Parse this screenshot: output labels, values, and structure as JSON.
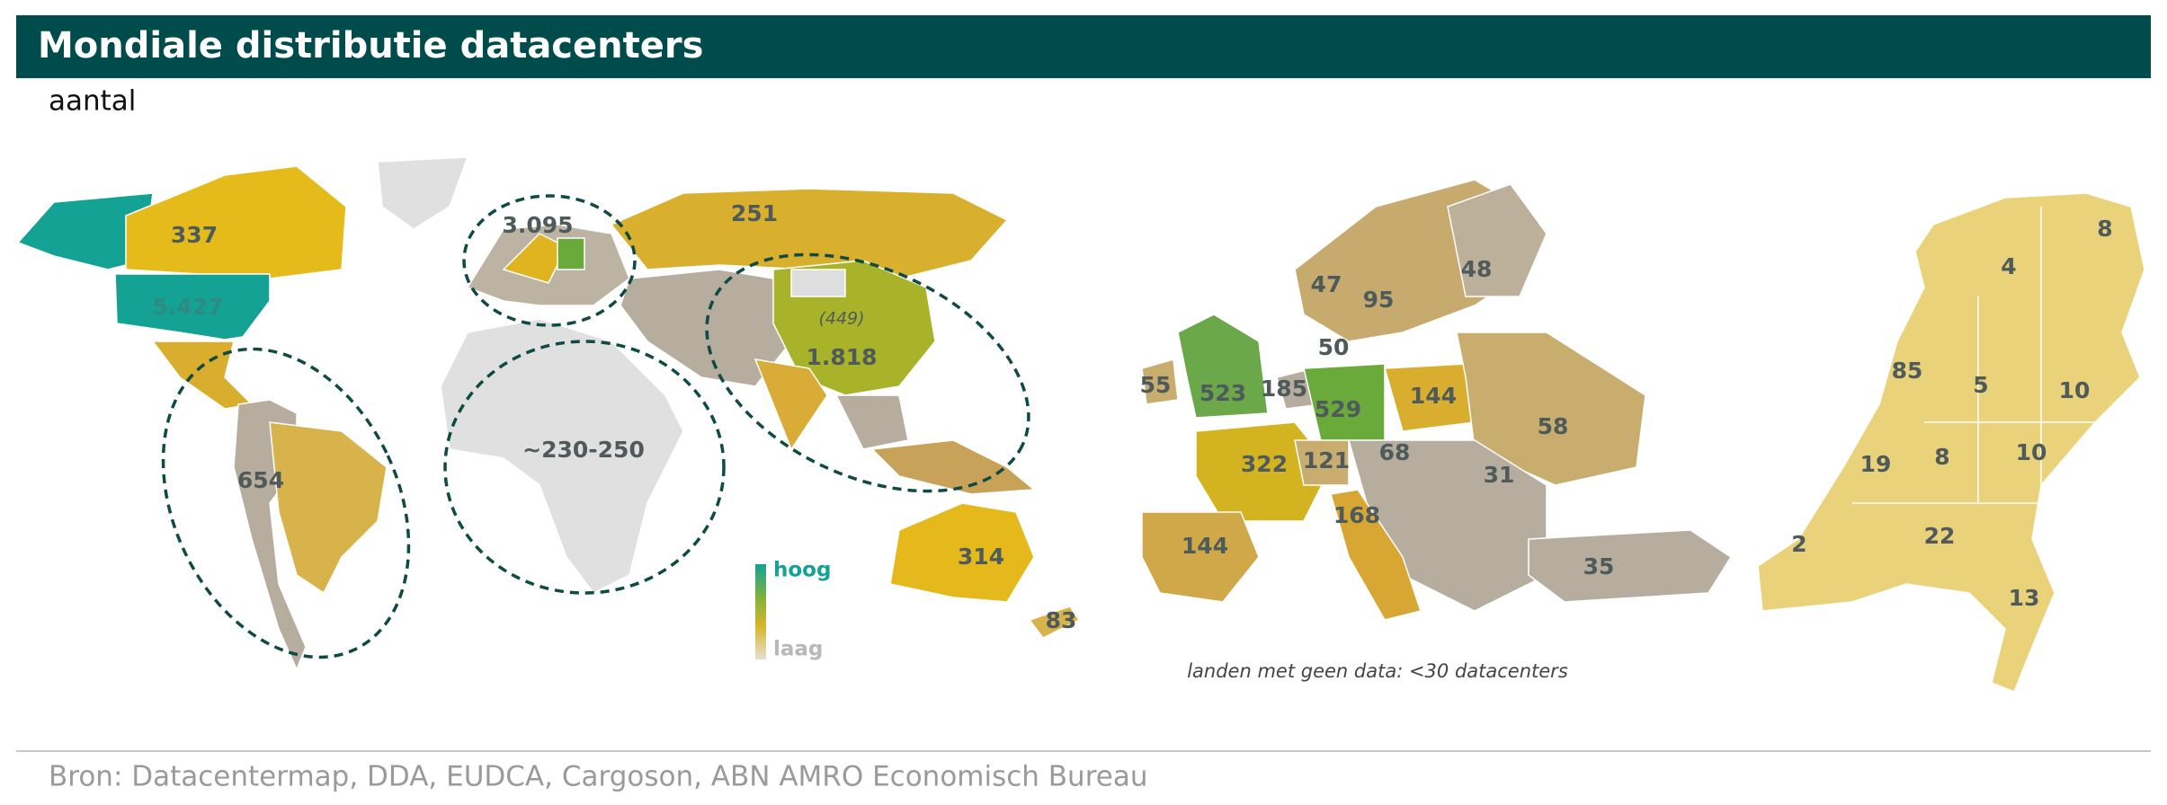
{
  "header": {
    "title": "Mondiale distributie datacenters",
    "subtitle": "aantal"
  },
  "world_map": {
    "labels": [
      "337",
      "5.427",
      "3.095",
      "251",
      "(449)",
      "1.818",
      "654",
      "~230-250",
      "314",
      "83"
    ],
    "legend": {
      "high": "hoog",
      "low": "laag"
    }
  },
  "europe_map": {
    "labels": [
      "47",
      "95",
      "48",
      "50",
      "55",
      "523",
      "185",
      "529",
      "144",
      "58",
      "322",
      "121",
      "68",
      "31",
      "168",
      "144",
      "35"
    ],
    "note": "landen met geen data: <30 datacenters"
  },
  "netherlands_map": {
    "labels": [
      "8",
      "4",
      "85",
      "5",
      "10",
      "19",
      "8",
      "10",
      "2",
      "22",
      "13"
    ]
  },
  "footer": {
    "source": "Bron: Datacentermap, DDA, EUDCA, Cargoson, ABN AMRO Economisch Bureau"
  }
}
